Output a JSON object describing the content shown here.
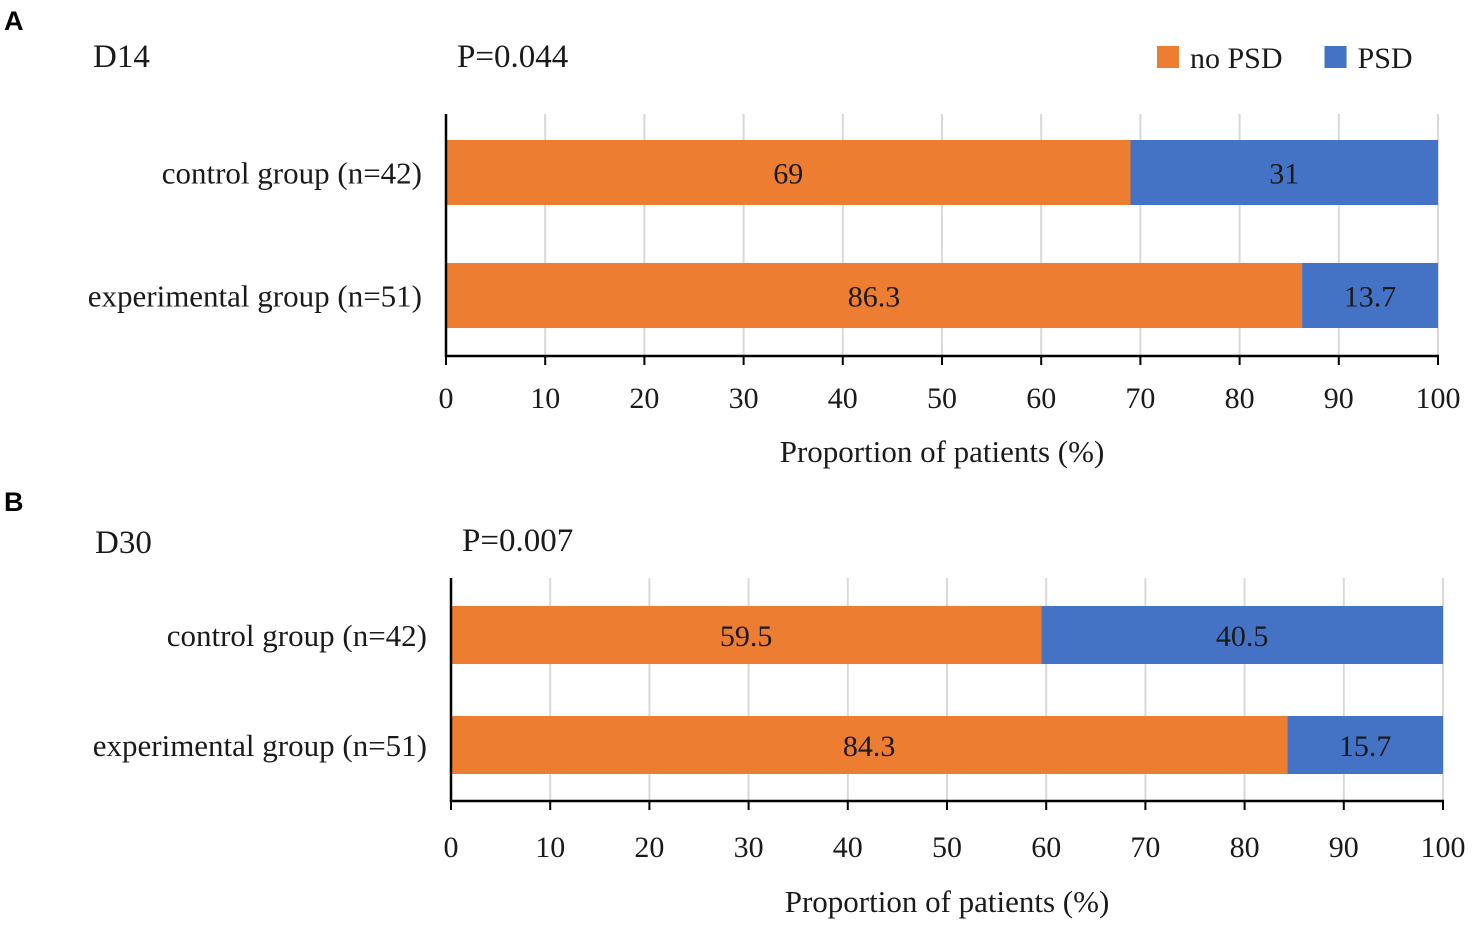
{
  "chart_data": [
    {
      "type": "bar",
      "orientation": "horizontal",
      "stacked": true,
      "panel": "A",
      "title": "D14",
      "p_value": "P=0.044",
      "categories": [
        "control group (n=42)",
        "experimental group (n=51)"
      ],
      "series": [
        {
          "name": "no PSD",
          "color": "#ED7D31",
          "values": [
            69,
            86.3
          ],
          "labels": [
            "69",
            "86.3"
          ]
        },
        {
          "name": "PSD",
          "color": "#4472C4",
          "values": [
            31,
            13.7
          ],
          "labels": [
            "31",
            "13.7"
          ]
        }
      ],
      "xlabel": "Proportion of patients (%)",
      "xlim": [
        0,
        100
      ],
      "xticks": [
        0,
        10,
        20,
        30,
        40,
        50,
        60,
        70,
        80,
        90,
        100
      ],
      "grid": "vertical",
      "legend": "top-right"
    },
    {
      "type": "bar",
      "orientation": "horizontal",
      "stacked": true,
      "panel": "B",
      "title": "D30",
      "p_value": "P=0.007",
      "categories": [
        "control group (n=42)",
        "experimental group (n=51)"
      ],
      "series": [
        {
          "name": "no PSD",
          "color": "#ED7D31",
          "values": [
            59.5,
            84.3
          ],
          "labels": [
            "59.5",
            "84.3"
          ]
        },
        {
          "name": "PSD",
          "color": "#4472C4",
          "values": [
            40.5,
            15.7
          ],
          "labels": [
            "40.5",
            "15.7"
          ]
        }
      ],
      "xlabel": "Proportion of patients (%)",
      "xlim": [
        0,
        100
      ],
      "xticks": [
        0,
        10,
        20,
        30,
        40,
        50,
        60,
        70,
        80,
        90,
        100
      ],
      "grid": "vertical",
      "legend": "none"
    }
  ]
}
